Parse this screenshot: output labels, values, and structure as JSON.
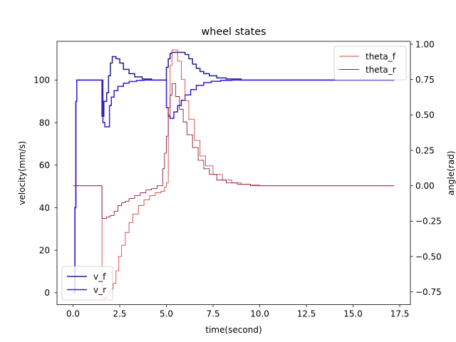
{
  "chart_data": {
    "type": "line",
    "title": "wheel states",
    "xlabel": "time(second)",
    "ylabel_left": "velocity(mm/s)",
    "ylabel_right": "angle(rad)",
    "xlim": [
      -0.86,
      18.07
    ],
    "ylim_left": [
      -5.6,
      118.2
    ],
    "ylim_right": [
      -0.84,
      1.02
    ],
    "x_ticks": [
      "0.0",
      "2.5",
      "5.0",
      "7.5",
      "10.0",
      "12.5",
      "15.0",
      "17.5"
    ],
    "y_ticks_left": [
      "0",
      "20",
      "40",
      "60",
      "80",
      "100"
    ],
    "y_ticks_right": [
      "−0.75",
      "−0.50",
      "−0.25",
      "0.00",
      "0.25",
      "0.50",
      "0.75",
      "1.00"
    ],
    "grid": false,
    "legend_left": {
      "placement": "lower-left",
      "entries": [
        "v_f",
        "v_r"
      ]
    },
    "legend_right": {
      "placement": "upper-right",
      "entries": [
        "theta_f",
        "theta_r"
      ]
    },
    "series": [
      {
        "name": "v_f",
        "axis": "left",
        "color": "#1f1f8f",
        "step": true,
        "x": [
          0,
          0.1,
          0.15,
          0.2,
          0.25,
          1.5,
          1.55,
          1.65,
          1.8,
          1.9,
          2.0,
          2.1,
          2.2,
          2.3,
          2.5,
          2.7,
          3.0,
          3.3,
          3.7,
          4.2,
          4.7,
          5.0,
          5.1,
          5.2,
          5.3,
          5.5,
          5.8,
          6.0,
          6.2,
          6.4,
          6.6,
          6.8,
          7.0,
          7.3,
          7.7,
          8.2,
          9.0,
          10.0,
          12.0,
          15.0,
          17.2
        ],
        "y": [
          0,
          40,
          90,
          100,
          100,
          100,
          83,
          90,
          94,
          102,
          108,
          111,
          111,
          110,
          108,
          105,
          103,
          101.5,
          100.5,
          100,
          100,
          106,
          110,
          112.5,
          113,
          113,
          113,
          112,
          110,
          107.5,
          105.5,
          104,
          103,
          102,
          101,
          100.5,
          100,
          100,
          100,
          100,
          100
        ]
      },
      {
        "name": "v_r",
        "axis": "left",
        "color": "#3a1ad8",
        "step": true,
        "x": [
          0,
          0.1,
          0.15,
          0.2,
          0.25,
          1.5,
          1.6,
          1.7,
          1.8,
          1.95,
          2.05,
          2.2,
          2.4,
          2.7,
          3.0,
          3.4,
          3.8,
          4.2,
          4.7,
          5.0,
          5.1,
          5.2,
          5.4,
          5.6,
          5.8,
          6.0,
          6.3,
          6.6,
          7.0,
          7.4,
          7.9,
          8.5,
          9.5,
          11.0,
          14.0,
          17.2
        ],
        "y": [
          0,
          40,
          90,
          100,
          100,
          100,
          80,
          78,
          78,
          88,
          92,
          95,
          97,
          98.5,
          99.3,
          99.8,
          100,
          100,
          100,
          87,
          83,
          82,
          85,
          88,
          90.5,
          93,
          95.5,
          97.5,
          98.8,
          99.4,
          99.8,
          100,
          100,
          100,
          100,
          100
        ]
      },
      {
        "name": "theta_f",
        "axis": "right",
        "color": "#d6453d",
        "step": true,
        "x": [
          0,
          0.1,
          1.5,
          1.55,
          1.7,
          1.85,
          2.0,
          2.15,
          2.3,
          2.45,
          2.6,
          2.8,
          3.0,
          3.2,
          3.5,
          3.8,
          4.1,
          4.4,
          4.7,
          4.9,
          5.0,
          5.1,
          5.2,
          5.3,
          5.45,
          5.6,
          5.8,
          6.0,
          6.2,
          6.5,
          6.8,
          7.1,
          7.5,
          8.0,
          8.5,
          9.0,
          9.5,
          10.0,
          11.0,
          12.5,
          14.0,
          17.2
        ],
        "y": [
          0,
          0,
          0,
          -0.8,
          -0.79,
          -0.76,
          -0.73,
          -0.69,
          -0.6,
          -0.5,
          -0.42,
          -0.33,
          -0.26,
          -0.2,
          -0.14,
          -0.1,
          -0.07,
          -0.05,
          -0.04,
          -0.01,
          0.02,
          0.55,
          0.85,
          0.96,
          0.96,
          0.88,
          0.75,
          0.6,
          0.47,
          0.32,
          0.21,
          0.14,
          0.08,
          0.04,
          0.02,
          0.01,
          0.005,
          0,
          0,
          0,
          0,
          0
        ]
      },
      {
        "name": "theta_r",
        "axis": "right",
        "color": "#8c1a3d",
        "step": true,
        "x": [
          0,
          0.1,
          1.5,
          1.55,
          1.8,
          2.0,
          2.2,
          2.4,
          2.6,
          2.8,
          3.0,
          3.3,
          3.6,
          3.9,
          4.2,
          4.5,
          4.7,
          4.8,
          4.9,
          5.0,
          5.1,
          5.2,
          5.3,
          5.4,
          5.5,
          5.7,
          5.9,
          6.1,
          6.4,
          6.7,
          7.0,
          7.3,
          7.7,
          8.2,
          8.8,
          9.5,
          10.5,
          12.0,
          14.0,
          17.2
        ],
        "y": [
          0,
          0,
          0,
          -0.23,
          -0.22,
          -0.21,
          -0.18,
          -0.14,
          -0.12,
          -0.11,
          -0.09,
          -0.07,
          -0.05,
          -0.03,
          -0.02,
          0.0,
          0.0,
          0.12,
          0.23,
          0.35,
          0.5,
          0.64,
          0.72,
          0.72,
          0.63,
          0.54,
          0.45,
          0.36,
          0.27,
          0.18,
          0.12,
          0.08,
          0.04,
          0.02,
          0.01,
          0.0,
          0,
          0,
          0,
          0
        ]
      }
    ]
  }
}
